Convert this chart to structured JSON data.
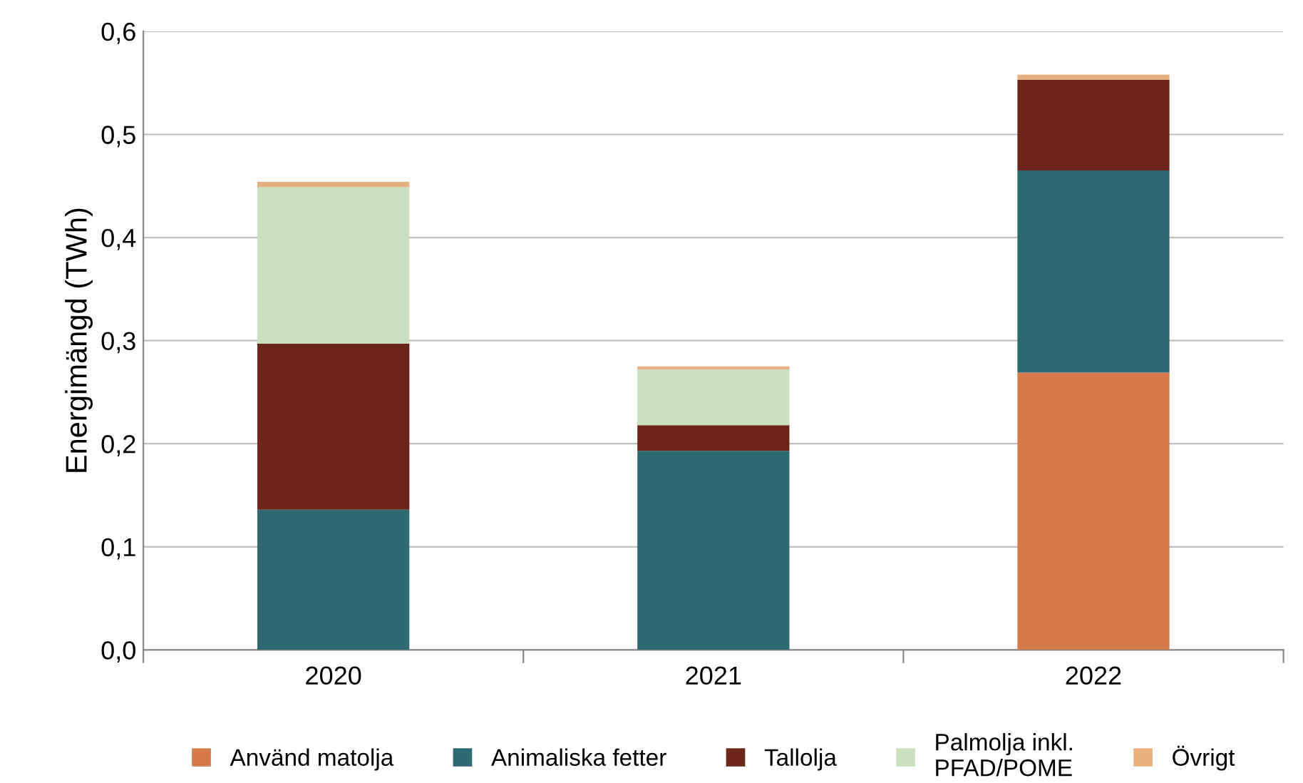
{
  "chart_data": {
    "type": "bar",
    "stacked": true,
    "ylabel": "Energimängd (TWh)",
    "categories": [
      "2020",
      "2021",
      "2022"
    ],
    "series": [
      {
        "name": "Använd matolja",
        "color": "#d57b4a",
        "values": [
          0,
          0,
          0.269
        ]
      },
      {
        "name": "Animaliska fetter",
        "color": "#2e6a73",
        "values": [
          0.136,
          0.193,
          0.196
        ]
      },
      {
        "name": "Tallolja",
        "color": "#6b2519",
        "values": [
          0.161,
          0.025,
          0.088
        ]
      },
      {
        "name": "Palmolja inkl.\nPFAD/POME",
        "color": "#c9dfbd",
        "values": [
          0.152,
          0.054,
          0
        ]
      },
      {
        "name": "Övrigt",
        "color": "#e8b07f",
        "values": [
          0.005,
          0.003,
          0.005
        ]
      }
    ],
    "ylim": [
      0,
      0.6
    ],
    "yticks": [
      {
        "value": 0,
        "label": "0,0"
      },
      {
        "value": 0.1,
        "label": "0,1"
      },
      {
        "value": 0.2,
        "label": "0,2"
      },
      {
        "value": 0.3,
        "label": "0,3"
      },
      {
        "value": 0.4,
        "label": "0,4"
      },
      {
        "value": 0.5,
        "label": "0,5"
      },
      {
        "value": 0.6,
        "label": "0,6"
      }
    ],
    "grid": "y",
    "legend": "bottom"
  }
}
